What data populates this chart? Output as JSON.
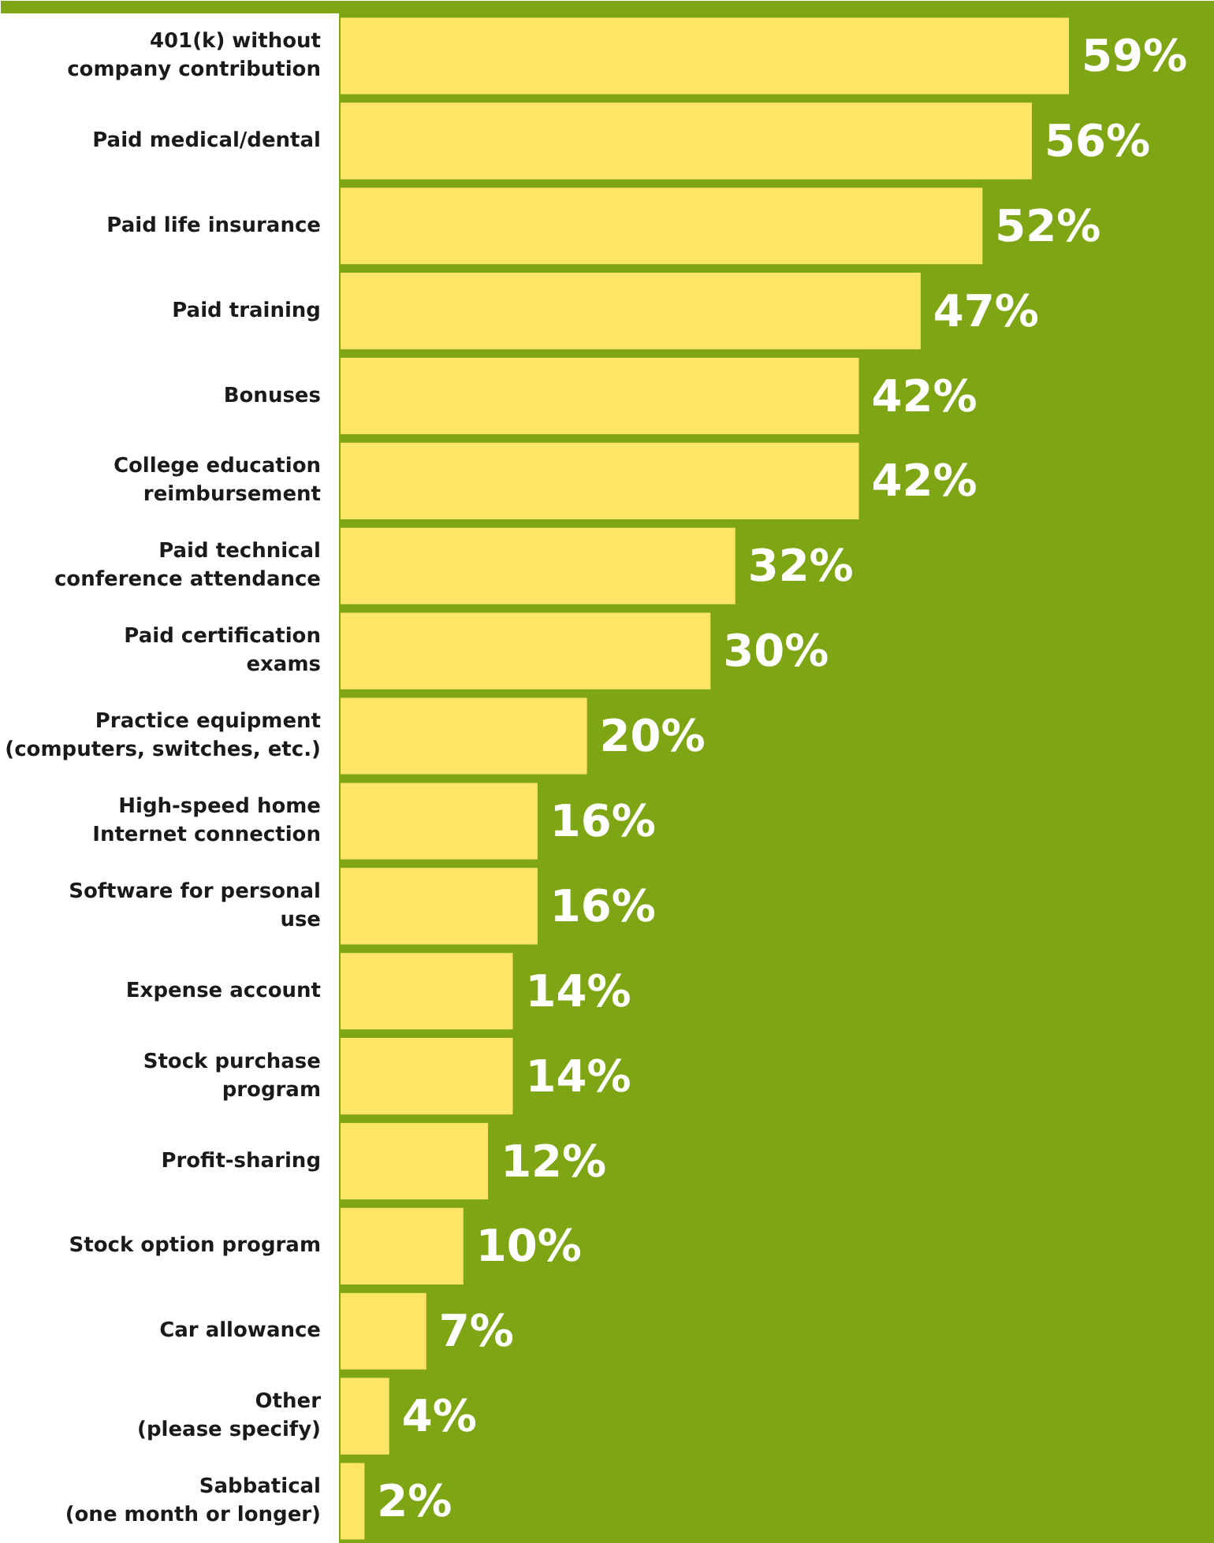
{
  "chart_data": {
    "type": "bar",
    "orientation": "horizontal",
    "categories": [
      "401(k) without company contribution",
      "Paid medical/dental",
      "Paid life insurance",
      "Paid training",
      "Bonuses",
      "College education reimbursement",
      "Paid technical conference attendance",
      "Paid certification exams",
      "Practice equipment (computers, switches, etc.)",
      "High-speed home Internet connection",
      "Software for personal use",
      "Expense account",
      "Stock purchase program",
      "Profit-sharing",
      "Stock option program",
      "Car allowance",
      "Other (please specify)",
      "Sabbatical (one month or longer)"
    ],
    "values": [
      59,
      56,
      52,
      47,
      42,
      42,
      32,
      30,
      20,
      16,
      16,
      14,
      14,
      12,
      10,
      7,
      4,
      2
    ],
    "value_labels": [
      "59%",
      "56%",
      "52%",
      "47%",
      "42%",
      "42%",
      "32%",
      "30%",
      "20%",
      "16%",
      "16%",
      "14%",
      "14%",
      "12%",
      "10%",
      "7%",
      "4%",
      "2%"
    ],
    "color": "#ffe566"
  }
}
